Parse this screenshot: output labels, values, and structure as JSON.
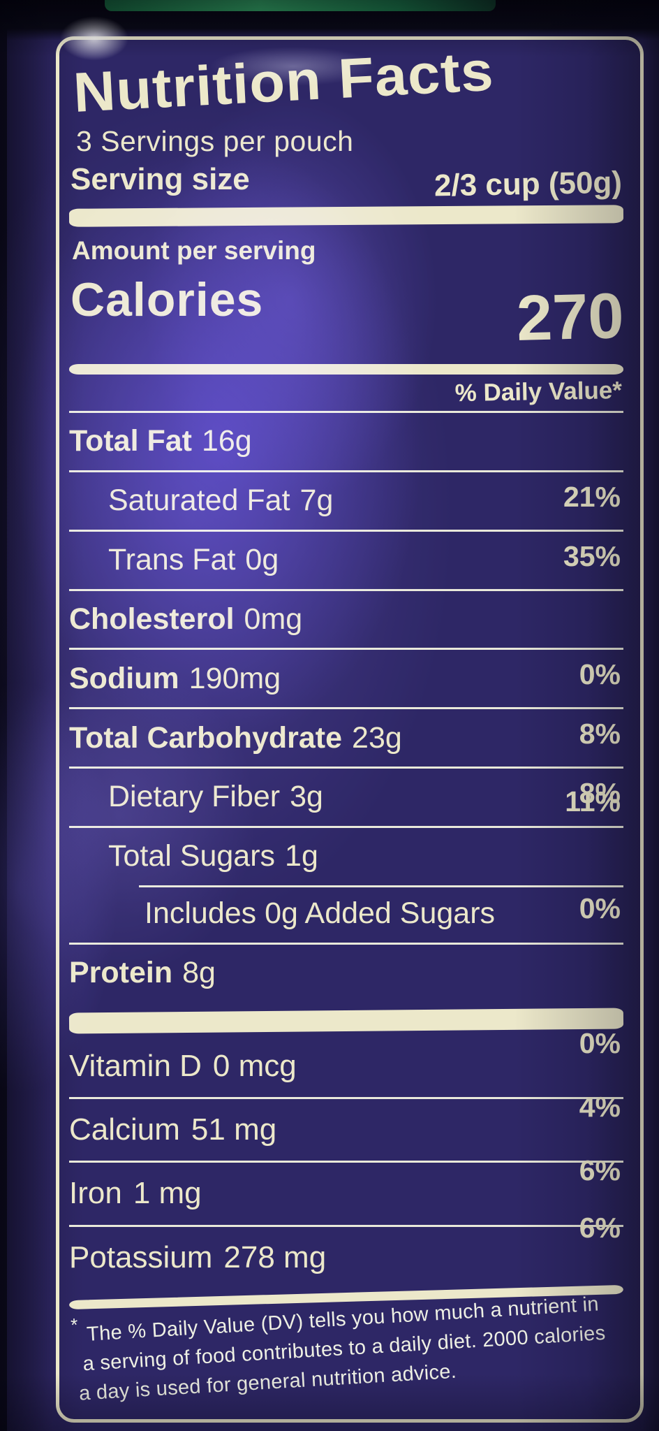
{
  "label": {
    "title": "Nutrition Facts",
    "servings_per_container": "3 Servings per pouch",
    "serving_size_label": "Serving size",
    "serving_size_value": "2/3 cup (50g)",
    "amount_per_serving": "Amount per serving",
    "calories_label": "Calories",
    "calories_value": "270",
    "daily_value_header": "% Daily Value*",
    "nutrients": [
      {
        "name": "Total Fat",
        "amount": "16g",
        "dv": "21%",
        "bold": true,
        "indent": 0
      },
      {
        "name": "Saturated Fat",
        "amount": "7g",
        "dv": "35%",
        "bold": false,
        "indent": 1
      },
      {
        "name": "Trans Fat",
        "amount": "0g",
        "dv": "",
        "bold": false,
        "indent": 1
      },
      {
        "name": "Cholesterol",
        "amount": "0mg",
        "dv": "0%",
        "bold": true,
        "indent": 0
      },
      {
        "name": "Sodium",
        "amount": "190mg",
        "dv": "8%",
        "bold": true,
        "indent": 0
      },
      {
        "name": "Total Carbohydrate",
        "amount": "23g",
        "dv": "8%",
        "bold": true,
        "indent": 0
      },
      {
        "name": "Dietary Fiber",
        "amount": "3g",
        "dv": "11%",
        "bold": false,
        "indent": 1
      },
      {
        "name": "Total Sugars",
        "amount": "1g",
        "dv": "",
        "bold": false,
        "indent": 1
      },
      {
        "name": "Includes 0g Added Sugars",
        "amount": "",
        "dv": "0%",
        "bold": false,
        "indent": 2
      },
      {
        "name": "Protein",
        "amount": "8g",
        "dv": "",
        "bold": true,
        "indent": 0
      }
    ],
    "micronutrients": [
      {
        "name": "Vitamin D",
        "amount": "0 mcg",
        "dv": "0%"
      },
      {
        "name": "Calcium",
        "amount": "51 mg",
        "dv": "4%"
      },
      {
        "name": "Iron",
        "amount": "1 mg",
        "dv": "6%"
      },
      {
        "name": "Potassium",
        "amount": "278 mg",
        "dv": "6%"
      }
    ],
    "footnote_asterisk": "*",
    "footnote_lines": [
      "The % Daily Value (DV) tells you how much a nutrient in",
      "a serving of food contributes to a daily diet. 2000 calories",
      "a day is used for general nutrition advice."
    ]
  },
  "colors": {
    "pouch_blue": "#2e2766",
    "glare_violet": "#5b4fd6",
    "ink_cream": "#ece8ca",
    "green_sliver": "#2f9a5f"
  }
}
